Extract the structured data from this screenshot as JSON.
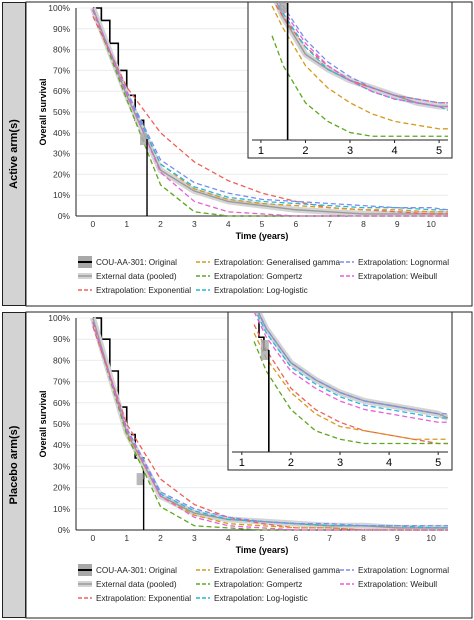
{
  "panels": {
    "active_label": "Active arm(s)",
    "placebo_label": "Placebo arm(s)"
  },
  "legend": {
    "items": [
      {
        "label": "COU-AA-301: Original",
        "color": "#000000",
        "style": "step"
      },
      {
        "label": "External data (pooled)",
        "color": "#9a9a9a",
        "style": "band"
      },
      {
        "label": "Extrapolation: Exponential",
        "color": "#f0605a",
        "style": "dash"
      },
      {
        "label": "Extrapolation: Generalised gamma",
        "color": "#d59a1e",
        "style": "dash"
      },
      {
        "label": "Extrapolation: Gompertz",
        "color": "#5ca81e",
        "style": "dash"
      },
      {
        "label": "Extrapolation: Log-logistic",
        "color": "#27b8d8",
        "style": "dash"
      },
      {
        "label": "Extrapolation: Lognormal",
        "color": "#7b8cf0",
        "style": "dash"
      },
      {
        "label": "Extrapolation: Weibull",
        "color": "#e85fd6",
        "style": "dash"
      }
    ]
  },
  "chart_data": [
    {
      "type": "line",
      "panel": "Active arm(s)",
      "xlabel": "Time (years)",
      "ylabel": "Overall survival",
      "xlim": [
        -0.5,
        10.5
      ],
      "ylim": [
        0,
        100
      ],
      "x_ticks": [
        "0",
        "1",
        "2",
        "3",
        "4",
        "5",
        "6",
        "7",
        "8",
        "9",
        "10"
      ],
      "y_ticks": [
        "0%",
        "10%",
        "20%",
        "30%",
        "40%",
        "50%",
        "60%",
        "70%",
        "80%",
        "90%",
        "100%"
      ],
      "km_end": 1.6,
      "series": [
        {
          "name": "COU-AA-301: Original",
          "x": [
            0,
            0.25,
            0.5,
            0.75,
            1.0,
            1.25,
            1.5,
            1.6
          ],
          "y": [
            100,
            94,
            83,
            70,
            58,
            46,
            37,
            37
          ]
        },
        {
          "name": "External data (pooled)",
          "x": [
            0,
            1,
            2,
            3,
            4,
            5,
            6,
            7,
            8,
            9,
            10,
            10.5
          ],
          "y": [
            100,
            58,
            22,
            12,
            7,
            5,
            3,
            2,
            1,
            1,
            1,
            1
          ]
        },
        {
          "name": "Extrapolation: Exponential",
          "x": [
            0,
            1,
            2,
            3,
            4,
            5,
            6,
            7,
            8,
            9,
            10,
            10.5
          ],
          "y": [
            96,
            62,
            40,
            26,
            17,
            11,
            7,
            4,
            3,
            2,
            1,
            1
          ]
        },
        {
          "name": "Extrapolation: Generalised gamma",
          "x": [
            0,
            1,
            2,
            3,
            4,
            5,
            6,
            7,
            8,
            9,
            10,
            10.5
          ],
          "y": [
            99,
            59,
            25,
            13,
            8,
            6,
            5,
            4,
            3,
            3,
            2,
            2
          ]
        },
        {
          "name": "Extrapolation: Gompertz",
          "x": [
            0,
            1,
            2,
            3,
            4,
            5,
            6,
            7,
            8,
            9,
            10,
            10.5
          ],
          "y": [
            99,
            56,
            15,
            2,
            0,
            0,
            0,
            0,
            0,
            0,
            0,
            0
          ]
        },
        {
          "name": "Extrapolation: Log-logistic",
          "x": [
            0,
            1,
            2,
            3,
            4,
            5,
            6,
            7,
            8,
            9,
            10,
            10.5
          ],
          "y": [
            99,
            59,
            25,
            14,
            9,
            7,
            6,
            5,
            4,
            4,
            3,
            3
          ]
        },
        {
          "name": "Extrapolation: Lognormal",
          "x": [
            0,
            1,
            2,
            3,
            4,
            5,
            6,
            7,
            8,
            9,
            10,
            10.5
          ],
          "y": [
            99,
            60,
            27,
            16,
            11,
            8,
            7,
            6,
            5,
            4,
            4,
            3
          ]
        },
        {
          "name": "Extrapolation: Weibull",
          "x": [
            0,
            1,
            2,
            3,
            4,
            5,
            6,
            7,
            8,
            9,
            10,
            10.5
          ],
          "y": [
            99,
            59,
            21,
            7,
            2,
            1,
            0,
            0,
            0,
            0,
            0,
            0
          ]
        }
      ],
      "inset": {
        "x_ticks": [
          "1",
          "2",
          "3",
          "4",
          "5"
        ],
        "xlim": [
          0.8,
          5.2
        ],
        "ylim": [
          0,
          36
        ],
        "series": [
          {
            "name": "COU-AA-301: Original",
            "x": [
              1.25,
              1.35,
              1.45,
              1.6
            ],
            "y": [
              46,
              40,
              37,
              37
            ]
          },
          {
            "name": "External data (pooled)",
            "x": [
              1.25,
              1.5,
              2,
              2.5,
              3,
              3.5,
              4,
              4.5,
              5,
              5.2
            ],
            "y": [
              40,
              33,
              23,
              19,
              16,
              14,
              12,
              10,
              9,
              9
            ]
          },
          {
            "name": "Extrapolation: Exponential",
            "x": [
              1.25,
              1.5,
              2,
              2.5,
              3,
              3.5,
              4,
              4.5,
              5,
              5.2
            ],
            "y": [
              38,
              33,
              25,
              20,
              16,
              14,
              12,
              11,
              10,
              10
            ]
          },
          {
            "name": "Extrapolation: Generalised gamma",
            "x": [
              1.25,
              1.5,
              2,
              2.5,
              3,
              3.5,
              4,
              4.5,
              5,
              5.2
            ],
            "y": [
              36,
              30,
              20,
              14,
              10,
              7,
              5,
              4,
              3,
              3
            ]
          },
          {
            "name": "Extrapolation: Gompertz",
            "x": [
              1.25,
              1.5,
              2,
              2.5,
              3,
              3.5,
              4,
              4.5,
              5,
              5.2
            ],
            "y": [
              28,
              20,
              10,
              5,
              2,
              1,
              1,
              1,
              1,
              1
            ]
          },
          {
            "name": "Extrapolation: Log-logistic",
            "x": [
              1.25,
              1.5,
              2,
              2.5,
              3,
              3.5,
              4,
              4.5,
              5,
              5.2
            ],
            "y": [
              40,
              34,
              25,
              19,
              16,
              13,
              11,
              10,
              9,
              8
            ]
          },
          {
            "name": "Extrapolation: Lognormal",
            "x": [
              1.25,
              1.5,
              2,
              2.5,
              3,
              3.5,
              4,
              4.5,
              5,
              5.2
            ],
            "y": [
              42,
              36,
              27,
              21,
              17,
              14,
              12,
              11,
              10,
              10
            ]
          },
          {
            "name": "Extrapolation: Weibull",
            "x": [
              1.25,
              1.5,
              2,
              2.5,
              3,
              3.5,
              4,
              4.5,
              5,
              5.2
            ],
            "y": [
              41,
              35,
              26,
              20,
              16,
              13,
              11,
              10,
              9,
              9
            ]
          }
        ]
      }
    },
    {
      "type": "line",
      "panel": "Placebo arm(s)",
      "xlabel": "Time (years)",
      "ylabel": "Overall survival",
      "xlim": [
        -0.5,
        10.5
      ],
      "ylim": [
        0,
        100
      ],
      "x_ticks": [
        "0",
        "1",
        "2",
        "3",
        "4",
        "5",
        "6",
        "7",
        "8",
        "9",
        "10"
      ],
      "y_ticks": [
        "0%",
        "10%",
        "20%",
        "30%",
        "40%",
        "50%",
        "60%",
        "70%",
        "80%",
        "90%",
        "100%"
      ],
      "km_end": 1.5,
      "series": [
        {
          "name": "COU-AA-301: Original",
          "x": [
            0,
            0.25,
            0.5,
            0.75,
            1.0,
            1.25,
            1.5
          ],
          "y": [
            100,
            90,
            75,
            58,
            45,
            34,
            24
          ]
        },
        {
          "name": "External data (pooled)",
          "x": [
            0,
            1,
            2,
            3,
            4,
            5,
            6,
            7,
            8,
            9,
            10,
            10.5
          ],
          "y": [
            100,
            46,
            16,
            8,
            5,
            4,
            3,
            2,
            2,
            1,
            1,
            1
          ]
        },
        {
          "name": "Extrapolation: Exponential",
          "x": [
            0,
            1,
            2,
            3,
            4,
            5,
            6,
            7,
            8,
            9,
            10,
            10.5
          ],
          "y": [
            96,
            50,
            24,
            12,
            6,
            3,
            1,
            1,
            0,
            0,
            0,
            0
          ]
        },
        {
          "name": "Extrapolation: Generalised gamma",
          "x": [
            0,
            1,
            2,
            3,
            4,
            5,
            6,
            7,
            8,
            9,
            10,
            10.5
          ],
          "y": [
            98,
            46,
            16,
            7,
            3,
            2,
            1,
            1,
            0,
            0,
            0,
            0
          ]
        },
        {
          "name": "Extrapolation: Gompertz",
          "x": [
            0,
            1,
            2,
            3,
            4,
            5,
            6,
            7,
            8,
            9,
            10,
            10.5
          ],
          "y": [
            98,
            45,
            11,
            2,
            1,
            0,
            0,
            0,
            0,
            0,
            0,
            0
          ]
        },
        {
          "name": "Extrapolation: Log-logistic",
          "x": [
            0,
            1,
            2,
            3,
            4,
            5,
            6,
            7,
            8,
            9,
            10,
            10.5
          ],
          "y": [
            98,
            47,
            17,
            9,
            5,
            4,
            3,
            2,
            2,
            2,
            1,
            1
          ]
        },
        {
          "name": "Extrapolation: Lognormal",
          "x": [
            0,
            1,
            2,
            3,
            4,
            5,
            6,
            7,
            8,
            9,
            10,
            10.5
          ],
          "y": [
            98,
            48,
            18,
            10,
            6,
            4,
            3,
            3,
            2,
            2,
            2,
            2
          ]
        },
        {
          "name": "Extrapolation: Weibull",
          "x": [
            0,
            1,
            2,
            3,
            4,
            5,
            6,
            7,
            8,
            9,
            10,
            10.5
          ],
          "y": [
            98,
            47,
            16,
            6,
            2,
            1,
            0,
            0,
            0,
            0,
            0,
            0
          ]
        }
      ],
      "inset": {
        "x_ticks": [
          "1",
          "2",
          "3",
          "4",
          "5"
        ],
        "xlim": [
          0.8,
          5.2
        ],
        "ylim": [
          0,
          32
        ],
        "series": [
          {
            "name": "COU-AA-301: Original",
            "x": [
              1.25,
              1.35,
              1.45,
              1.55
            ],
            "y": [
              34,
              27,
              24,
              24
            ]
          },
          {
            "name": "External data (pooled)",
            "x": [
              1.25,
              1.5,
              2,
              2.5,
              3,
              3.5,
              4,
              4.5,
              5,
              5.2
            ],
            "y": [
              35,
              29,
              21,
              17,
              14,
              12,
              11,
              10,
              9,
              8
            ]
          },
          {
            "name": "Extrapolation: Exponential",
            "x": [
              1.25,
              1.5,
              2,
              2.5,
              3,
              3.5,
              4,
              4.5,
              5,
              5.2
            ],
            "y": [
              30,
              24,
              15,
              10,
              7,
              5,
              4,
              3,
              2,
              2
            ]
          },
          {
            "name": "Extrapolation: Generalised gamma",
            "x": [
              1.25,
              1.5,
              2,
              2.5,
              3,
              3.5,
              4,
              4.5,
              5,
              5.2
            ],
            "y": [
              28,
              22,
              14,
              9,
              6,
              5,
              4,
              3,
              3,
              3
            ]
          },
          {
            "name": "Extrapolation: Gompertz",
            "x": [
              1.25,
              1.5,
              2,
              2.5,
              3,
              3.5,
              4,
              4.5,
              5,
              5.2
            ],
            "y": [
              26,
              19,
              10,
              5,
              3,
              2,
              2,
              2,
              2,
              2
            ]
          },
          {
            "name": "Extrapolation: Log-logistic",
            "x": [
              1.25,
              1.5,
              2,
              2.5,
              3,
              3.5,
              4,
              4.5,
              5,
              5.2
            ],
            "y": [
              34,
              28,
              20,
              16,
              13,
              11,
              10,
              9,
              8,
              8
            ]
          },
          {
            "name": "Extrapolation: Lognormal",
            "x": [
              1.25,
              1.5,
              2,
              2.5,
              3,
              3.5,
              4,
              4.5,
              5,
              5.2
            ],
            "y": [
              35,
              29,
              21,
              17,
              14,
              12,
              11,
              10,
              9,
              9
            ]
          },
          {
            "name": "Extrapolation: Weibull",
            "x": [
              1.25,
              1.5,
              2,
              2.5,
              3,
              3.5,
              4,
              4.5,
              5,
              5.2
            ],
            "y": [
              33,
              27,
              19,
              15,
              12,
              10,
              9,
              8,
              7,
              7
            ]
          }
        ]
      }
    }
  ]
}
